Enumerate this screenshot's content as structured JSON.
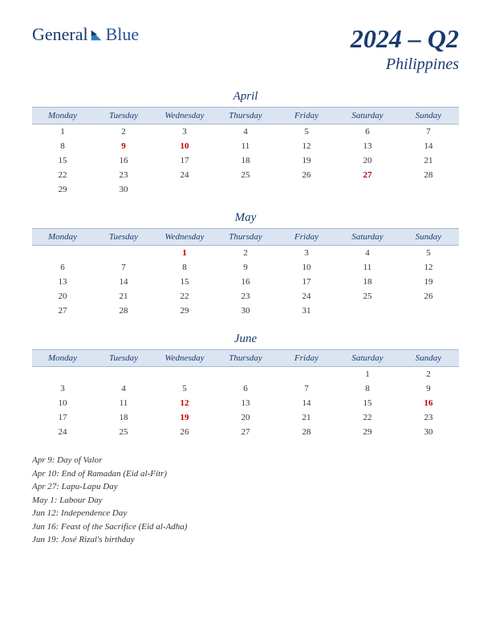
{
  "logo": {
    "text1": "General",
    "text2": "Blue"
  },
  "title": {
    "quarter": "2024 – Q2",
    "country": "Philippines"
  },
  "colors": {
    "header_bg": "#dbe5f1",
    "header_border": "#a8b8d0",
    "primary": "#1a3a6e",
    "holiday": "#c00000",
    "text": "#333333",
    "bg": "#ffffff"
  },
  "day_headers": [
    "Monday",
    "Tuesday",
    "Wednesday",
    "Thursday",
    "Friday",
    "Saturday",
    "Sunday"
  ],
  "months": [
    {
      "name": "April",
      "weeks": [
        [
          {
            "d": "1"
          },
          {
            "d": "2"
          },
          {
            "d": "3"
          },
          {
            "d": "4"
          },
          {
            "d": "5"
          },
          {
            "d": "6"
          },
          {
            "d": "7"
          }
        ],
        [
          {
            "d": "8"
          },
          {
            "d": "9",
            "h": true
          },
          {
            "d": "10",
            "h": true
          },
          {
            "d": "11"
          },
          {
            "d": "12"
          },
          {
            "d": "13"
          },
          {
            "d": "14"
          }
        ],
        [
          {
            "d": "15"
          },
          {
            "d": "16"
          },
          {
            "d": "17"
          },
          {
            "d": "18"
          },
          {
            "d": "19"
          },
          {
            "d": "20"
          },
          {
            "d": "21"
          }
        ],
        [
          {
            "d": "22"
          },
          {
            "d": "23"
          },
          {
            "d": "24"
          },
          {
            "d": "25"
          },
          {
            "d": "26"
          },
          {
            "d": "27",
            "h": true
          },
          {
            "d": "28"
          }
        ],
        [
          {
            "d": "29"
          },
          {
            "d": "30"
          },
          {
            "d": ""
          },
          {
            "d": ""
          },
          {
            "d": ""
          },
          {
            "d": ""
          },
          {
            "d": ""
          }
        ]
      ]
    },
    {
      "name": "May",
      "weeks": [
        [
          {
            "d": ""
          },
          {
            "d": ""
          },
          {
            "d": "1",
            "h": true
          },
          {
            "d": "2"
          },
          {
            "d": "3"
          },
          {
            "d": "4"
          },
          {
            "d": "5"
          }
        ],
        [
          {
            "d": "6"
          },
          {
            "d": "7"
          },
          {
            "d": "8"
          },
          {
            "d": "9"
          },
          {
            "d": "10"
          },
          {
            "d": "11"
          },
          {
            "d": "12"
          }
        ],
        [
          {
            "d": "13"
          },
          {
            "d": "14"
          },
          {
            "d": "15"
          },
          {
            "d": "16"
          },
          {
            "d": "17"
          },
          {
            "d": "18"
          },
          {
            "d": "19"
          }
        ],
        [
          {
            "d": "20"
          },
          {
            "d": "21"
          },
          {
            "d": "22"
          },
          {
            "d": "23"
          },
          {
            "d": "24"
          },
          {
            "d": "25"
          },
          {
            "d": "26"
          }
        ],
        [
          {
            "d": "27"
          },
          {
            "d": "28"
          },
          {
            "d": "29"
          },
          {
            "d": "30"
          },
          {
            "d": "31"
          },
          {
            "d": ""
          },
          {
            "d": ""
          }
        ]
      ]
    },
    {
      "name": "June",
      "weeks": [
        [
          {
            "d": ""
          },
          {
            "d": ""
          },
          {
            "d": ""
          },
          {
            "d": ""
          },
          {
            "d": ""
          },
          {
            "d": "1"
          },
          {
            "d": "2"
          }
        ],
        [
          {
            "d": "3"
          },
          {
            "d": "4"
          },
          {
            "d": "5"
          },
          {
            "d": "6"
          },
          {
            "d": "7"
          },
          {
            "d": "8"
          },
          {
            "d": "9"
          }
        ],
        [
          {
            "d": "10"
          },
          {
            "d": "11"
          },
          {
            "d": "12",
            "h": true
          },
          {
            "d": "13"
          },
          {
            "d": "14"
          },
          {
            "d": "15"
          },
          {
            "d": "16",
            "h": true
          }
        ],
        [
          {
            "d": "17"
          },
          {
            "d": "18"
          },
          {
            "d": "19",
            "h": true
          },
          {
            "d": "20"
          },
          {
            "d": "21"
          },
          {
            "d": "22"
          },
          {
            "d": "23"
          }
        ],
        [
          {
            "d": "24"
          },
          {
            "d": "25"
          },
          {
            "d": "26"
          },
          {
            "d": "27"
          },
          {
            "d": "28"
          },
          {
            "d": "29"
          },
          {
            "d": "30"
          }
        ]
      ]
    }
  ],
  "holidays": [
    "Apr 9: Day of Valor",
    "Apr 10: End of Ramadan (Eid al-Fitr)",
    "Apr 27: Lapu-Lapu Day",
    "May 1: Labour Day",
    "Jun 12: Independence Day",
    "Jun 16: Feast of the Sacrifice (Eid al-Adha)",
    "Jun 19: José Rizal's birthday"
  ]
}
